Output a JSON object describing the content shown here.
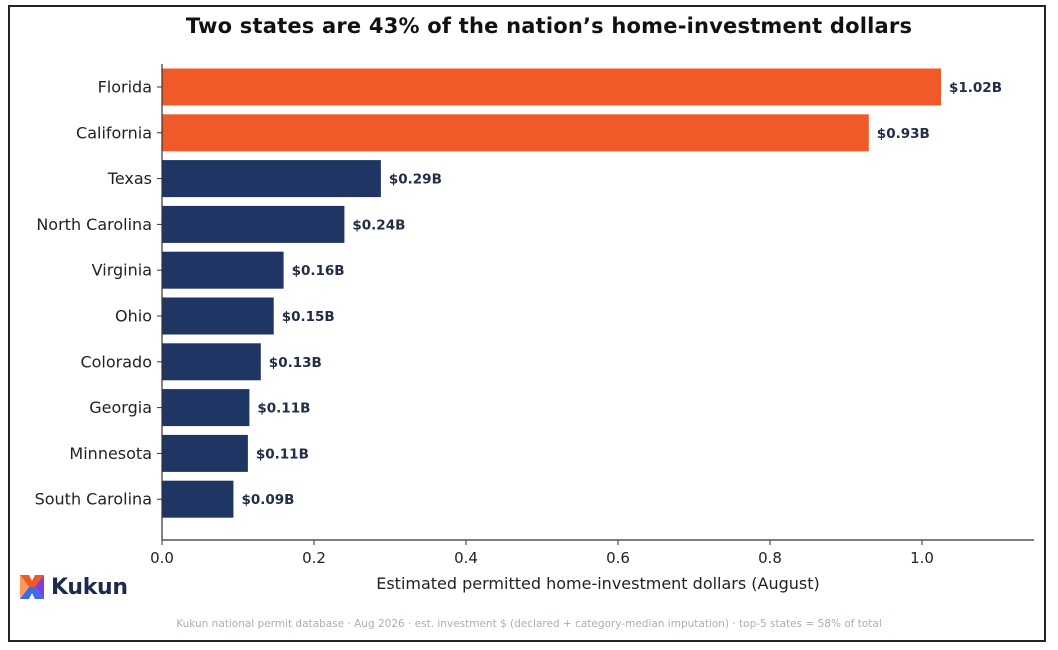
{
  "colors": {
    "highlight": "#f05a28",
    "default": "#1f3564",
    "value_label": "#222e45",
    "axis": "#333333"
  },
  "chart_data": {
    "type": "bar",
    "orientation": "horizontal",
    "title": "Two states are 43% of the nation’s home-investment dollars",
    "xlabel": "Estimated permitted home-investment dollars (August)",
    "ylabel": "",
    "xlim": [
      0,
      1.15
    ],
    "xticks": [
      "0.0",
      "0.2",
      "0.4",
      "0.6",
      "0.8",
      "1.0"
    ],
    "grid": false,
    "categories": [
      "Florida",
      "California",
      "Texas",
      "North Carolina",
      "Virginia",
      "Ohio",
      "Colorado",
      "Georgia",
      "Minnesota",
      "South Carolina"
    ],
    "values": [
      1.025,
      0.93,
      0.288,
      0.24,
      0.16,
      0.147,
      0.13,
      0.115,
      0.113,
      0.094
    ],
    "value_labels": [
      "$1.02B",
      "$0.93B",
      "$0.29B",
      "$0.24B",
      "$0.16B",
      "$0.15B",
      "$0.13B",
      "$0.11B",
      "$0.11B",
      "$0.09B"
    ],
    "highlighted": [
      "Florida",
      "California"
    ]
  },
  "branding": {
    "logo_text": "Kukun",
    "logo_icon": "kukun-x-icon"
  },
  "footnote": "Kukun national permit database · Aug 2026 · est. investment $ (declared + category-median imputation) · top-5 states = 58% of total"
}
